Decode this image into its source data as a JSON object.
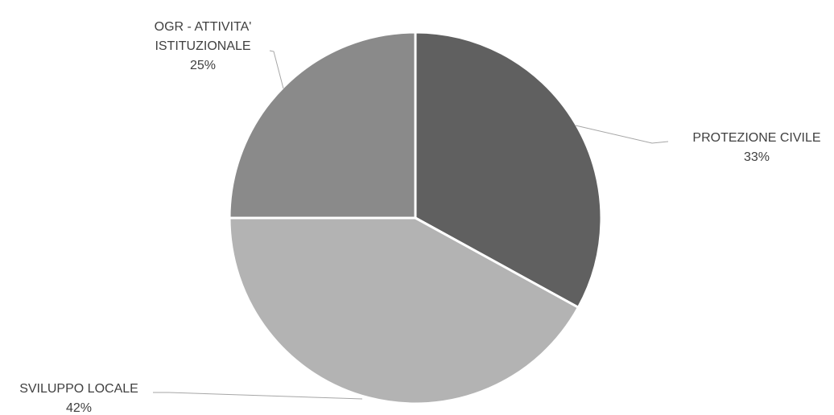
{
  "chart_data": {
    "type": "pie",
    "title": "",
    "categories": [
      "PROTEZIONE CIVILE",
      "SVILUPPO LOCALE",
      "OGR - ATTIVITA' ISTITUZIONALE"
    ],
    "values": [
      33,
      42,
      25
    ],
    "value_labels": [
      "33%",
      "42%",
      "25%"
    ],
    "label_lines": [
      [
        "PROTEZIONE CIVILE"
      ],
      [
        "SVILUPPO LOCALE"
      ],
      [
        "OGR - ATTIVITA'",
        "ISTITUZIONALE"
      ]
    ],
    "colors": [
      "#606060",
      "#b3b3b3",
      "#8a8a8a"
    ],
    "start_angle": "12 o'clock",
    "direction": "clockwise",
    "legend": "none",
    "data_labels": "outside with leader lines"
  }
}
